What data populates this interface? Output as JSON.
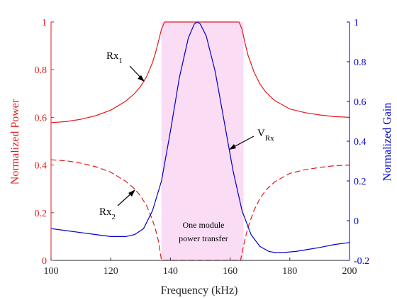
{
  "chart_data": {
    "type": "line",
    "xlabel": "Frequency (kHz)",
    "ylabel_left": "Normalized Power",
    "ylabel_right": "Normalized Gain",
    "xlim": [
      100,
      200
    ],
    "ylim_left": [
      0,
      1
    ],
    "ylim_right": [
      -0.2,
      1
    ],
    "x_ticks": [
      "100",
      "120",
      "140",
      "160",
      "180",
      "200"
    ],
    "y_left_ticks": [
      "0",
      "0.2",
      "0.4",
      "0.6",
      "0.8",
      "1"
    ],
    "y_right_ticks": [
      "-0.2",
      "0",
      "0.2",
      "0.4",
      "0.6",
      "0.8",
      "1"
    ],
    "colors": {
      "left_axis": "#e41a1c",
      "right_axis": "#0000cc",
      "band": "#fadcf5"
    },
    "shaded_band": {
      "x_start": 137,
      "x_end": 164.5,
      "label_line1": "One module",
      "label_line2": "power transfer"
    },
    "series": [
      {
        "axis": "left",
        "style": "solid",
        "color": "#e41a1c",
        "x": [
          100,
          105,
          110,
          115,
          120,
          125,
          128,
          130,
          132,
          134,
          135,
          136,
          137,
          138,
          160,
          163,
          164,
          165,
          166,
          168,
          170,
          172,
          175,
          180,
          185,
          190,
          195,
          200
        ],
        "y": [
          0.578,
          0.582,
          0.592,
          0.607,
          0.63,
          0.668,
          0.7,
          0.73,
          0.77,
          0.83,
          0.87,
          0.92,
          0.97,
          1.0,
          1.0,
          1.0,
          0.97,
          0.91,
          0.86,
          0.79,
          0.74,
          0.705,
          0.67,
          0.635,
          0.62,
          0.61,
          0.603,
          0.6
        ]
      },
      {
        "axis": "left",
        "style": "dashed",
        "color": "#e41a1c",
        "x": [
          100,
          105,
          110,
          115,
          120,
          125,
          128,
          130,
          132,
          134,
          135,
          136,
          136.5,
          137,
          163.5,
          164,
          164.5,
          165,
          166,
          168,
          170,
          172,
          175,
          180,
          185,
          190,
          195,
          200
        ],
        "y": [
          0.422,
          0.418,
          0.408,
          0.393,
          0.37,
          0.332,
          0.3,
          0.27,
          0.23,
          0.17,
          0.13,
          0.08,
          0.04,
          0.0,
          0.0,
          0.03,
          0.06,
          0.09,
          0.14,
          0.21,
          0.26,
          0.295,
          0.33,
          0.365,
          0.38,
          0.39,
          0.397,
          0.4
        ]
      },
      {
        "axis": "right",
        "style": "solid",
        "color": "#0000cc",
        "x": [
          100,
          105,
          110,
          115,
          120,
          125,
          128,
          131,
          134,
          137,
          140,
          143,
          146,
          148,
          149,
          150,
          152,
          155,
          158,
          161,
          164,
          167,
          170,
          173,
          175,
          178,
          182,
          186,
          190,
          195,
          200
        ],
        "y": [
          -0.04,
          -0.05,
          -0.06,
          -0.07,
          -0.08,
          -0.08,
          -0.07,
          -0.04,
          0.05,
          0.2,
          0.45,
          0.72,
          0.92,
          0.99,
          1.0,
          0.99,
          0.93,
          0.75,
          0.5,
          0.25,
          0.05,
          -0.07,
          -0.13,
          -0.155,
          -0.16,
          -0.16,
          -0.155,
          -0.145,
          -0.135,
          -0.12,
          -0.11
        ]
      }
    ],
    "annotations": [
      {
        "text": "Rx",
        "sub": "1"
      },
      {
        "text": "Rx",
        "sub": "2"
      },
      {
        "text": "V",
        "sub": "Rx"
      }
    ]
  }
}
